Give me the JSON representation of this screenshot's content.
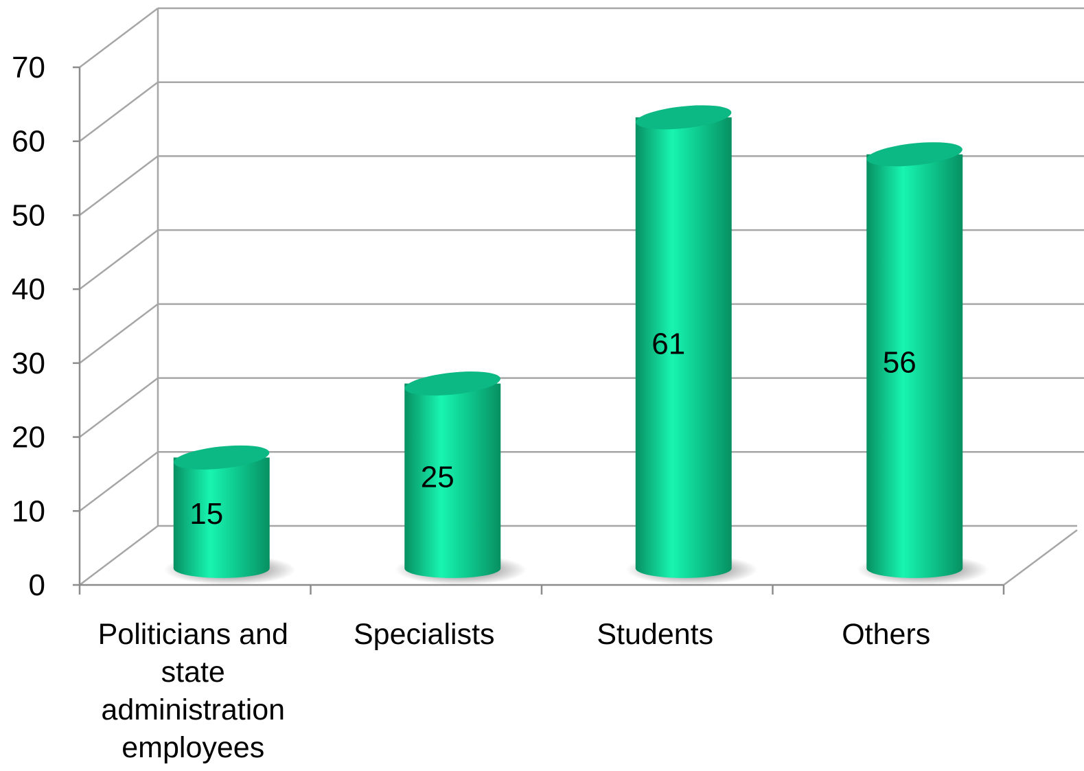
{
  "chart_data": {
    "type": "bar",
    "style": "3d-cylinder",
    "categories": [
      "Politicians and state administration employees",
      "Specialists",
      "Students",
      "Others"
    ],
    "category_label_lines": [
      [
        "Politicians and",
        "state",
        "administration",
        "employees"
      ],
      [
        "Specialists"
      ],
      [
        "Students"
      ],
      [
        "Others"
      ]
    ],
    "values": [
      15,
      25,
      61,
      56
    ],
    "data_labels": [
      "15",
      "25",
      "61",
      "56"
    ],
    "ylim": [
      0,
      70
    ],
    "yticks": [
      0,
      10,
      20,
      30,
      40,
      50,
      60,
      70
    ],
    "ytick_labels": [
      "0",
      "10",
      "20",
      "30",
      "40",
      "50",
      "60",
      "70"
    ],
    "grid": true,
    "legend": "none",
    "title": "",
    "xlabel": "",
    "ylabel": "",
    "colors": {
      "bar_light": "#18f5b0",
      "bar_mid": "#0fcf92",
      "bar_dark": "#079062",
      "bar_top": "#0cb883",
      "grid": "#a6a6a6",
      "axis": "#8c8c8c",
      "text": "#000000"
    }
  }
}
